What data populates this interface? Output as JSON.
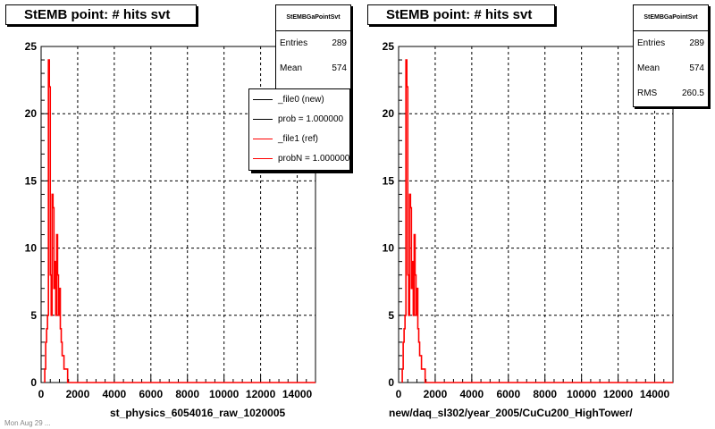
{
  "panels": [
    {
      "title": "StEMB point: # hits svt",
      "stats": {
        "name": "StEMBGaPointSvt",
        "entries_label": "Entries",
        "entries": "289",
        "mean_label": "Mean",
        "mean": "574"
      },
      "xtitle": "st_physics_6054016_raw_1020005",
      "legend": [
        {
          "label": "_file0 (new)",
          "color": "#000000"
        },
        {
          "label": "prob = 1.000000",
          "color": "#000000"
        },
        {
          "label": "_file1 (ref)",
          "color": "#ff0000"
        },
        {
          "label": "probN = 1.000000",
          "color": "#ff0000"
        }
      ]
    },
    {
      "title": "StEMB point: # hits svt",
      "stats": {
        "name": "StEMBGaPointSvt",
        "entries_label": "Entries",
        "entries": "289",
        "mean_label": "Mean",
        "mean": "574",
        "rms_label": "RMS",
        "rms": "260.5"
      },
      "xtitle": "new/daq_sl302/year_2005/CuCu200_HighTower/"
    }
  ],
  "footer": "Mon Aug 29 ...",
  "colors": {
    "hist_new": "#000000",
    "hist_ref": "#ff0000",
    "grid": "#000000"
  },
  "chart_data": [
    {
      "type": "line",
      "title": "StEMB point: # hits svt",
      "xlabel": "st_physics_6054016_raw_1020005",
      "ylabel": "",
      "xlim": [
        0,
        15000
      ],
      "ylim": [
        0,
        25
      ],
      "xticks": [
        "0",
        "2000",
        "4000",
        "6000",
        "8000",
        "10000",
        "12000",
        "14000"
      ],
      "yticks": [
        "0",
        "5",
        "10",
        "15",
        "20",
        "25"
      ],
      "grid": true,
      "legend_position": "top-right",
      "series": [
        {
          "name": "_file1 (ref)",
          "x": [
            200,
            250,
            300,
            350,
            400,
            450,
            500,
            550,
            600,
            650,
            700,
            750,
            800,
            850,
            900,
            950,
            1000,
            1050,
            1100,
            1150,
            1200,
            1250,
            1300,
            1350,
            1400,
            1450,
            1500
          ],
          "y": [
            1,
            3,
            4,
            5,
            24,
            22,
            8,
            5,
            14,
            13,
            7,
            9,
            5,
            11,
            8,
            5,
            7,
            4,
            3,
            2,
            2,
            1,
            1,
            1,
            1,
            0,
            0
          ]
        }
      ]
    },
    {
      "type": "line",
      "title": "StEMB point: # hits svt",
      "xlabel": "new/daq_sl302/year_2005/CuCu200_HighTower/",
      "ylabel": "",
      "xlim": [
        0,
        15000
      ],
      "ylim": [
        0,
        25
      ],
      "xticks": [
        "0",
        "2000",
        "4000",
        "6000",
        "8000",
        "10000",
        "12000",
        "14000"
      ],
      "yticks": [
        "0",
        "5",
        "10",
        "15",
        "20",
        "25"
      ],
      "grid": true,
      "series": [
        {
          "name": "_file1 (ref)",
          "x": [
            200,
            250,
            300,
            350,
            400,
            450,
            500,
            550,
            600,
            650,
            700,
            750,
            800,
            850,
            900,
            950,
            1000,
            1050,
            1100,
            1150,
            1200,
            1250,
            1300,
            1350,
            1400,
            1450,
            1500
          ],
          "y": [
            1,
            3,
            4,
            5,
            24,
            22,
            8,
            5,
            14,
            13,
            7,
            9,
            5,
            11,
            8,
            5,
            7,
            4,
            3,
            2,
            2,
            1,
            1,
            1,
            1,
            0,
            0
          ]
        }
      ]
    }
  ]
}
